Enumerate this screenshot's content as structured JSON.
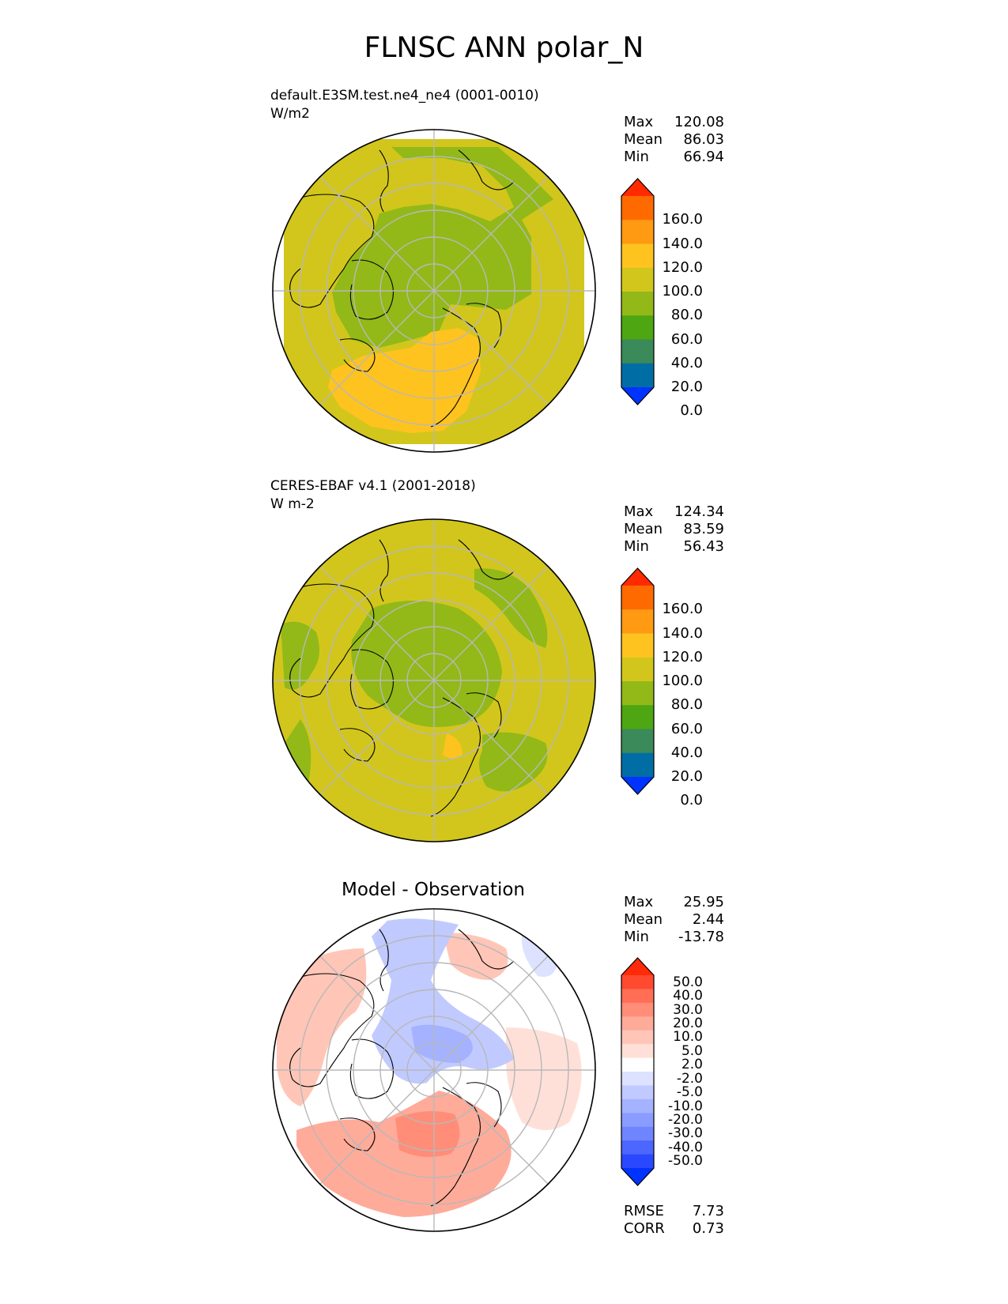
{
  "figure": {
    "title": "FLNSC ANN polar_N"
  },
  "panels": [
    {
      "name": "test",
      "label": "default.E3SM.test.ne4_ne4 (0001-0010)",
      "units": "W/m2",
      "stats": {
        "max_label": "Max",
        "max": "120.08",
        "mean_label": "Mean",
        "mean": "86.03",
        "min_label": "Min",
        "min": "66.94"
      }
    },
    {
      "name": "reference",
      "label": "CERES-EBAF v4.1 (2001-2018)",
      "units": "W m-2",
      "stats": {
        "max_label": "Max",
        "max": "124.34",
        "mean_label": "Mean",
        "mean": "83.59",
        "min_label": "Min",
        "min": "56.43"
      }
    },
    {
      "name": "difference",
      "title": "Model - Observation",
      "stats": {
        "max_label": "Max",
        "max": "25.95",
        "mean_label": "Mean",
        "mean": "2.44",
        "min_label": "Min",
        "min": "-13.78"
      },
      "metrics": {
        "rmse_label": "RMSE",
        "rmse": "7.73",
        "corr_label": "CORR",
        "corr": "0.73"
      }
    }
  ],
  "colorbars": {
    "main": {
      "labels": [
        "160.0",
        "140.0",
        "120.0",
        "100.0",
        "80.0",
        "60.0",
        "40.0",
        "20.0",
        "0.0"
      ],
      "colors_top_to_bottom": [
        "#ff2a00",
        "#ff6a00",
        "#ff9a12",
        "#ffc31f",
        "#d2c61c",
        "#92b918",
        "#4da612",
        "#3a8a5a",
        "#006ea4",
        "#0033ff"
      ]
    },
    "diff": {
      "labels": [
        "50.0",
        "40.0",
        "30.0",
        "20.0",
        "10.0",
        "5.0",
        "2.0",
        "-2.0",
        "-5.0",
        "-10.0",
        "-20.0",
        "-30.0",
        "-40.0",
        "-50.0"
      ],
      "colors_top_to_bottom": [
        "#ff2a0a",
        "#ff4a30",
        "#ff6e55",
        "#ff8d78",
        "#ffab9a",
        "#ffc6b8",
        "#ffe0d8",
        "#ffffff",
        "#dce2ff",
        "#c0caff",
        "#a4b2ff",
        "#8a9cff",
        "#6e85ff",
        "#4d66ff",
        "#2a48ff",
        "#0033ff"
      ]
    }
  },
  "map": {
    "projection": "North Polar Stereographic",
    "colors": {
      "field_80_100": "#d2c61c",
      "field_60_80": "#92b918",
      "field_100_120": "#ffc31f",
      "field_120_140": "#ff9a12",
      "diff_pos_light": "#ffe0d8",
      "diff_pos_mid": "#ffc6b8",
      "diff_pos_strong": "#ffab9a",
      "diff_pos_stronger": "#ff8d78",
      "diff_neg_light": "#dce2ff",
      "diff_neg_mid": "#c0caff",
      "diff_neg_strong": "#a4b2ff"
    }
  }
}
